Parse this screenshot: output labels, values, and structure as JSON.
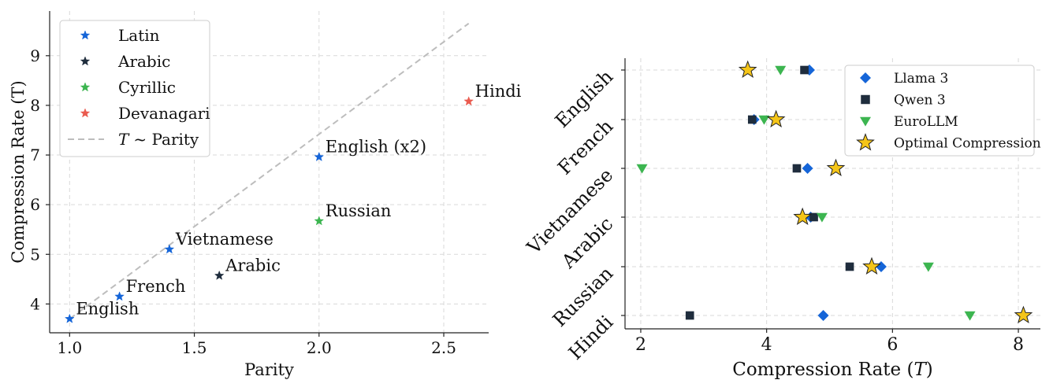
{
  "chart_data": [
    {
      "type": "scatter",
      "xlabel": "Parity",
      "ylabel": "Compression Rate (T)",
      "xlim": [
        0.92,
        2.68
      ],
      "ylim": [
        3.42,
        9.9
      ],
      "xticks": [
        1.0,
        1.5,
        2.0,
        2.5
      ],
      "xtick_labels": [
        "1.0",
        "1.5",
        "2.0",
        "2.5"
      ],
      "yticks": [
        4,
        5,
        6,
        7,
        8,
        9
      ],
      "ytick_labels": [
        "4",
        "5",
        "6",
        "7",
        "8",
        "9"
      ],
      "grid": true,
      "legend_position": "top-left",
      "series": [
        {
          "name": "Latin",
          "color": "#1565d8",
          "marker": "star"
        },
        {
          "name": "Arabic",
          "color": "#1f2d3d",
          "marker": "star"
        },
        {
          "name": "Cyrillic",
          "color": "#3cb550",
          "marker": "star"
        },
        {
          "name": "Devanagari",
          "color": "#ea5b4f",
          "marker": "star"
        }
      ],
      "points": [
        {
          "label": "English",
          "script": "Latin",
          "x": 1.0,
          "y": 3.7
        },
        {
          "label": "French",
          "script": "Latin",
          "x": 1.2,
          "y": 4.15
        },
        {
          "label": "Vietnamese",
          "script": "Latin",
          "x": 1.4,
          "y": 5.1
        },
        {
          "label": "English (x2)",
          "script": "Latin",
          "x": 2.0,
          "y": 6.96
        },
        {
          "label": "Arabic",
          "script": "Arabic",
          "x": 1.6,
          "y": 4.57
        },
        {
          "label": "Russian",
          "script": "Cyrillic",
          "x": 2.0,
          "y": 5.67
        },
        {
          "label": "Hindi",
          "script": "Devanagari",
          "x": 2.6,
          "y": 8.08
        }
      ],
      "trend_line": {
        "name_prefix": "T",
        "name_suffix": "~ Parity",
        "color": "#bdbdbd",
        "x": [
          1.0,
          2.6
        ],
        "y": [
          3.7,
          9.65
        ]
      }
    },
    {
      "type": "scatter",
      "xlabel_prefix": "Compression Rate (",
      "xlabel_var": "T",
      "xlabel_suffix": ")",
      "xlim": [
        1.75,
        8.35
      ],
      "xticks": [
        2,
        4,
        6,
        8
      ],
      "xtick_labels": [
        "2",
        "4",
        "6",
        "8"
      ],
      "categories": [
        "English",
        "French",
        "Vietnamese",
        "Arabic",
        "Russian",
        "Hindi"
      ],
      "grid": true,
      "legend_position": "top-right",
      "series": [
        {
          "name": "Llama 3",
          "color": "#1565d8",
          "marker": "diamond",
          "values": [
            4.68,
            3.8,
            4.65,
            4.7,
            5.82,
            4.9
          ]
        },
        {
          "name": "Qwen 3",
          "color": "#1f2d3d",
          "marker": "square",
          "values": [
            4.6,
            3.77,
            4.48,
            4.75,
            5.32,
            2.78
          ]
        },
        {
          "name": "EuroLLM",
          "color": "#3cb550",
          "marker": "triangle-down",
          "values": [
            4.22,
            3.96,
            2.02,
            4.88,
            6.57,
            7.23
          ]
        },
        {
          "name": "Optimal Compression",
          "color": "#f5c518",
          "marker": "star",
          "values": [
            3.7,
            4.15,
            5.1,
            4.57,
            5.67,
            8.08
          ]
        }
      ]
    }
  ]
}
